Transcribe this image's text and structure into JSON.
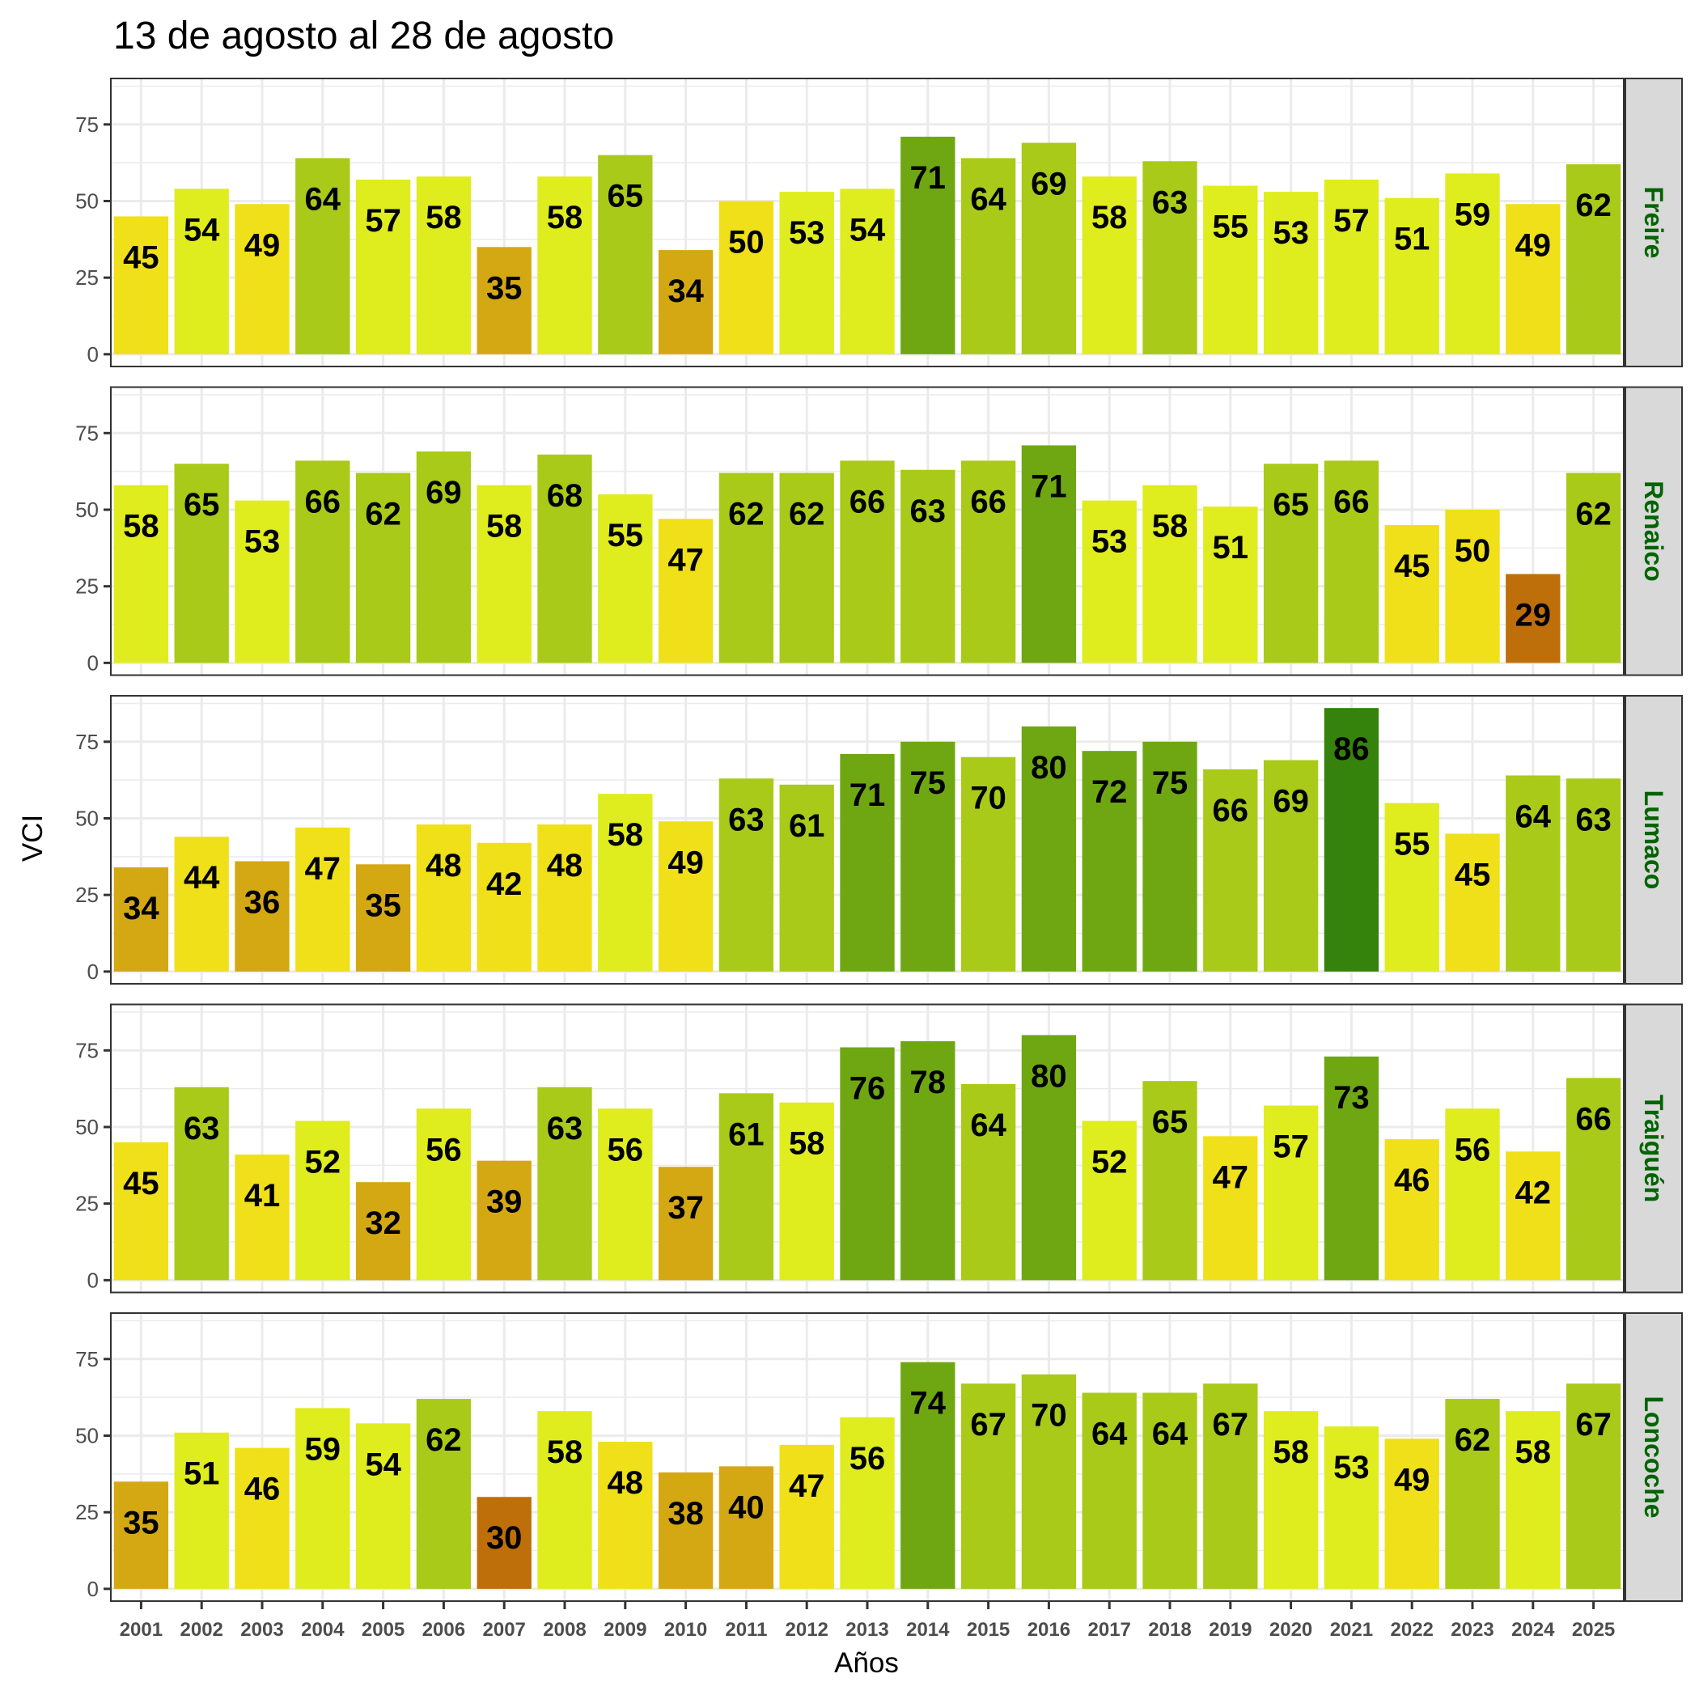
{
  "chart_data": {
    "type": "bar",
    "title": "13 de agosto al 28 de agosto",
    "xlabel": "Años",
    "ylabel": "VCI",
    "ylim": [
      -4,
      90
    ],
    "yticks": [
      0,
      25,
      50,
      75
    ],
    "grid": true,
    "facet_position": "right",
    "categories": [
      "2001",
      "2002",
      "2003",
      "2004",
      "2005",
      "2006",
      "2007",
      "2008",
      "2009",
      "2010",
      "2011",
      "2012",
      "2013",
      "2014",
      "2015",
      "2016",
      "2017",
      "2018",
      "2019",
      "2020",
      "2021",
      "2022",
      "2023",
      "2024",
      "2025"
    ],
    "color_classes": [
      {
        "range": "20-30",
        "color": "#BF6F0A"
      },
      {
        "range": "30-40",
        "color": "#D4A813"
      },
      {
        "range": "40-50",
        "color": "#EFE01A"
      },
      {
        "range": "50-60",
        "color": "#DFEC1E"
      },
      {
        "range": "60-70",
        "color": "#A9CA18"
      },
      {
        "range": "70-80",
        "color": "#6FA712"
      },
      {
        "range": "80-90",
        "color": "#35820D"
      }
    ],
    "strip_text_color": "#006400",
    "strip_fill": "#D9D9D9",
    "series": [
      {
        "name": "Freire",
        "values": [
          45,
          54,
          49,
          64,
          57,
          58,
          35,
          58,
          65,
          34,
          50,
          53,
          54,
          71,
          64,
          69,
          58,
          63,
          55,
          53,
          57,
          51,
          59,
          49,
          62
        ]
      },
      {
        "name": "Renaico",
        "values": [
          58,
          65,
          53,
          66,
          62,
          69,
          58,
          68,
          55,
          47,
          62,
          62,
          66,
          63,
          66,
          71,
          53,
          58,
          51,
          65,
          66,
          45,
          50,
          29,
          62
        ]
      },
      {
        "name": "Lumaco",
        "values": [
          34,
          44,
          36,
          47,
          35,
          48,
          42,
          48,
          58,
          49,
          63,
          61,
          71,
          75,
          70,
          80,
          72,
          75,
          66,
          69,
          86,
          55,
          45,
          64,
          63
        ]
      },
      {
        "name": "Traiguén",
        "values": [
          45,
          63,
          41,
          52,
          32,
          56,
          39,
          63,
          56,
          37,
          61,
          58,
          76,
          78,
          64,
          80,
          52,
          65,
          47,
          57,
          73,
          46,
          56,
          42,
          66
        ]
      },
      {
        "name": "Loncoche",
        "values": [
          35,
          51,
          46,
          59,
          54,
          62,
          30,
          58,
          48,
          38,
          40,
          47,
          56,
          74,
          67,
          70,
          64,
          64,
          67,
          58,
          53,
          49,
          62,
          58,
          67
        ]
      }
    ]
  }
}
